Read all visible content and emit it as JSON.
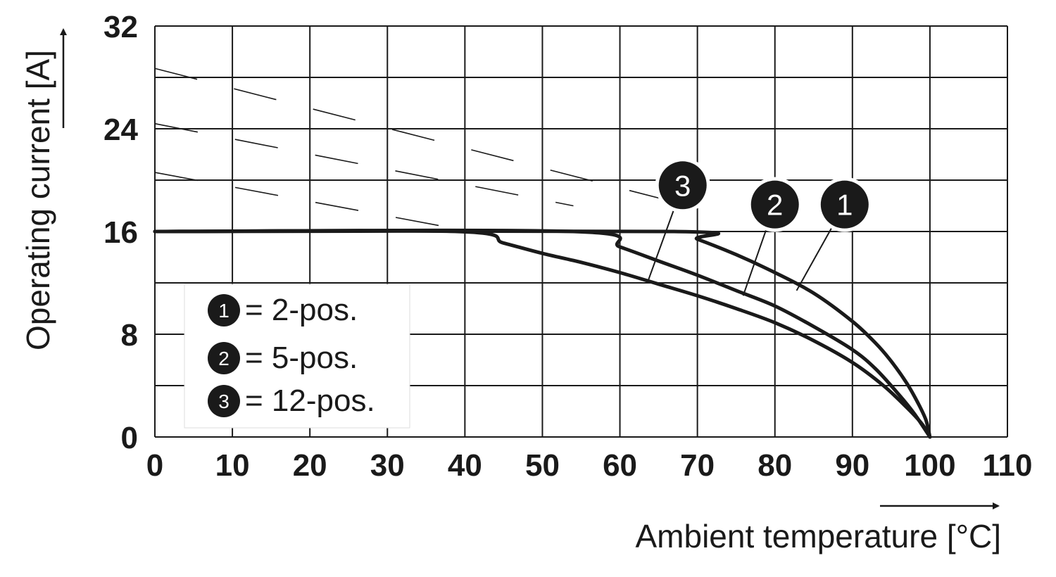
{
  "chart_data": {
    "type": "line",
    "xlabel": "Ambient temperature [°C]",
    "ylabel": "Operating current [A]",
    "xlim": [
      0,
      110
    ],
    "ylim": [
      0,
      32
    ],
    "xticks": [
      "0",
      "10",
      "20",
      "30",
      "40",
      "50",
      "60",
      "70",
      "80",
      "90",
      "100",
      "110"
    ],
    "yticks": [
      "0",
      "8",
      "16",
      "24",
      "32"
    ],
    "x_grid_step": 10,
    "y_grid_step": 4,
    "grid": true,
    "series": [
      {
        "marker": "1",
        "legend_label": "= 2-pos.",
        "points": [
          [
            0,
            16
          ],
          [
            67,
            16
          ],
          [
            70,
            15.4
          ],
          [
            75,
            14.2
          ],
          [
            80,
            12.8
          ],
          [
            85,
            11.2
          ],
          [
            90,
            9.0
          ],
          [
            93,
            7.3
          ],
          [
            95,
            5.9
          ],
          [
            97,
            4.2
          ],
          [
            98.5,
            2.6
          ],
          [
            99.5,
            1.3
          ],
          [
            100,
            0
          ]
        ],
        "extension": [
          [
            0,
            28.7
          ],
          [
            67,
            18.3
          ]
        ]
      },
      {
        "marker": "2",
        "legend_label": "= 5-pos.",
        "points": [
          [
            0,
            16
          ],
          [
            54,
            16
          ],
          [
            60,
            14.8
          ],
          [
            65,
            13.7
          ],
          [
            70,
            12.6
          ],
          [
            75,
            11.4
          ],
          [
            80,
            10.2
          ],
          [
            85,
            8.6
          ],
          [
            90,
            6.8
          ],
          [
            93,
            5.3
          ],
          [
            96,
            3.3
          ],
          [
            98,
            1.8
          ],
          [
            100,
            0
          ]
        ],
        "extension": [
          [
            0,
            24.4
          ],
          [
            54,
            18.0
          ]
        ]
      },
      {
        "marker": "3",
        "legend_label": "= 12-pos.",
        "points": [
          [
            0,
            16
          ],
          [
            39,
            16
          ],
          [
            45,
            15.1
          ],
          [
            50,
            14.3
          ],
          [
            55,
            13.6
          ],
          [
            60,
            12.8
          ],
          [
            65,
            11.9
          ],
          [
            70,
            11.0
          ],
          [
            75,
            10.0
          ],
          [
            80,
            8.9
          ],
          [
            85,
            7.5
          ],
          [
            90,
            5.8
          ],
          [
            94,
            4.0
          ],
          [
            97,
            2.3
          ],
          [
            99,
            1.0
          ],
          [
            100,
            0
          ]
        ],
        "extension": [
          [
            0,
            20.6
          ],
          [
            39,
            16.2
          ]
        ]
      }
    ],
    "callouts": [
      {
        "marker": "3",
        "circle": [
          68.1,
          19.6
        ],
        "leader_to": [
          63.6,
          12.1
        ]
      },
      {
        "marker": "2",
        "circle": [
          80.0,
          18.1
        ],
        "leader_to": [
          75.9,
          11.0
        ]
      },
      {
        "marker": "1",
        "circle": [
          89.0,
          18.1
        ],
        "leader_to": [
          82.8,
          11.4
        ]
      }
    ],
    "legend": {
      "placement": "lower-left"
    }
  }
}
